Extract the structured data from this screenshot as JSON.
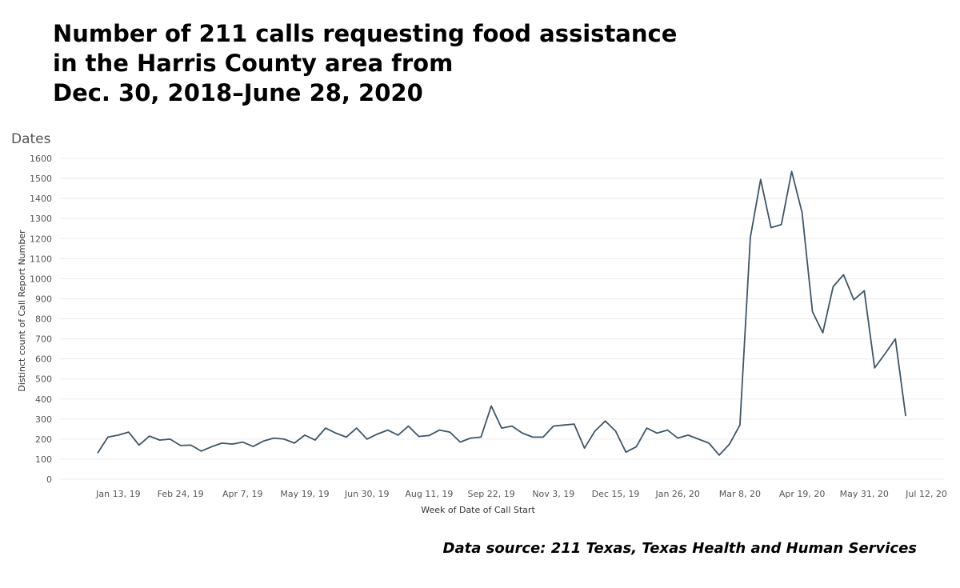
{
  "title_lines": [
    "Number of 211 calls requesting food assistance",
    "in the Harris County area from",
    "Dec. 30, 2018–June 28, 2020"
  ],
  "sheet_title": "Dates",
  "source": "Data source: 211 Texas, Texas Health and Human Services",
  "colors": {
    "line": "#3f5569",
    "grid": "#ececec",
    "text": "#555555"
  },
  "chart_data": {
    "type": "line",
    "title": "Number of 211 calls requesting food assistance in the Harris County area from Dec. 30, 2018–June 28, 2020",
    "xlabel": "Week of Date of Call Start",
    "ylabel": "Distinct count of Call Report Number",
    "ylim": [
      0,
      1600
    ],
    "yticks": [
      0,
      100,
      200,
      300,
      400,
      500,
      600,
      700,
      800,
      900,
      1000,
      1100,
      1200,
      1300,
      1400,
      1500,
      1600
    ],
    "xlim": [
      "2018-12-30",
      "2020-07-12"
    ],
    "xticks": [
      {
        "date": "2019-01-13",
        "label": "Jan 13, 19"
      },
      {
        "date": "2019-02-24",
        "label": "Feb 24, 19"
      },
      {
        "date": "2019-04-07",
        "label": "Apr 7, 19"
      },
      {
        "date": "2019-05-19",
        "label": "May 19, 19"
      },
      {
        "date": "2019-06-30",
        "label": "Jun 30, 19"
      },
      {
        "date": "2019-08-11",
        "label": "Aug 11, 19"
      },
      {
        "date": "2019-09-22",
        "label": "Sep 22, 19"
      },
      {
        "date": "2019-11-03",
        "label": "Nov 3, 19"
      },
      {
        "date": "2019-12-15",
        "label": "Dec 15, 19"
      },
      {
        "date": "2020-01-26",
        "label": "Jan 26, 20"
      },
      {
        "date": "2020-03-08",
        "label": "Mar 8, 20"
      },
      {
        "date": "2020-04-19",
        "label": "Apr 19, 20"
      },
      {
        "date": "2020-05-31",
        "label": "May 31, 20"
      },
      {
        "date": "2020-07-12",
        "label": "Jul 12, 20"
      }
    ],
    "grid": true,
    "legend": "none",
    "x": [
      "2018-12-30",
      "2019-01-06",
      "2019-01-13",
      "2019-01-20",
      "2019-01-27",
      "2019-02-03",
      "2019-02-10",
      "2019-02-17",
      "2019-02-24",
      "2019-03-03",
      "2019-03-10",
      "2019-03-17",
      "2019-03-24",
      "2019-03-31",
      "2019-04-07",
      "2019-04-14",
      "2019-04-21",
      "2019-04-28",
      "2019-05-05",
      "2019-05-12",
      "2019-05-19",
      "2019-05-26",
      "2019-06-02",
      "2019-06-09",
      "2019-06-16",
      "2019-06-23",
      "2019-06-30",
      "2019-07-07",
      "2019-07-14",
      "2019-07-21",
      "2019-07-28",
      "2019-08-04",
      "2019-08-11",
      "2019-08-18",
      "2019-08-25",
      "2019-09-01",
      "2019-09-08",
      "2019-09-15",
      "2019-09-22",
      "2019-09-29",
      "2019-10-06",
      "2019-10-13",
      "2019-10-20",
      "2019-10-27",
      "2019-11-03",
      "2019-11-10",
      "2019-11-17",
      "2019-11-24",
      "2019-12-01",
      "2019-12-08",
      "2019-12-15",
      "2019-12-22",
      "2019-12-29",
      "2020-01-05",
      "2020-01-12",
      "2020-01-19",
      "2020-01-26",
      "2020-02-02",
      "2020-02-09",
      "2020-02-16",
      "2020-02-23",
      "2020-03-01",
      "2020-03-08",
      "2020-03-15",
      "2020-03-22",
      "2020-03-29",
      "2020-04-05",
      "2020-04-12",
      "2020-04-19",
      "2020-04-26",
      "2020-05-03",
      "2020-05-10",
      "2020-05-17",
      "2020-05-24",
      "2020-05-31",
      "2020-06-07",
      "2020-06-14",
      "2020-06-21",
      "2020-06-28"
    ],
    "y": [
      130,
      210,
      220,
      235,
      170,
      215,
      195,
      200,
      168,
      170,
      140,
      162,
      180,
      175,
      185,
      163,
      190,
      205,
      200,
      180,
      220,
      195,
      255,
      230,
      210,
      255,
      200,
      225,
      245,
      220,
      265,
      213,
      218,
      245,
      235,
      185,
      205,
      210,
      365,
      255,
      265,
      230,
      210,
      210,
      265,
      270,
      275,
      155,
      240,
      290,
      240,
      135,
      162,
      255,
      230,
      245,
      205,
      220,
      200,
      180,
      120,
      175,
      270,
      1205,
      1495,
      1255,
      1270,
      1535,
      1330,
      835,
      730,
      960,
      1020,
      895,
      940,
      555,
      625,
      700,
      315
    ]
  }
}
